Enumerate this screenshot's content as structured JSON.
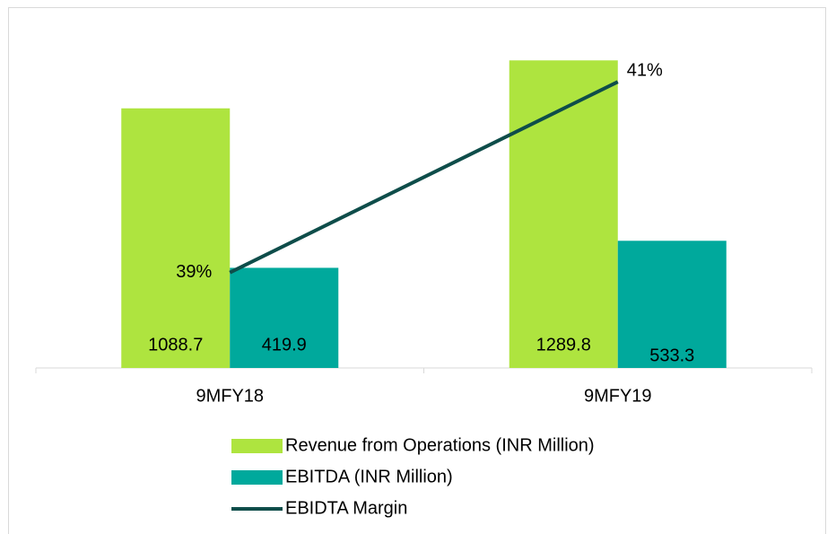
{
  "chart_data": {
    "type": "bar",
    "categories": [
      "9MFY18",
      "9MFY19"
    ],
    "series": [
      {
        "name": "Revenue from Operations (INR Million)",
        "color": "#aee43f",
        "values": [
          1088.7,
          1289.8
        ]
      },
      {
        "name": "EBITDA (INR Million)",
        "color": "#00a99c",
        "values": [
          419.9,
          533.3
        ]
      },
      {
        "name": "EBIDTA Margin",
        "color": "#0e4d4a",
        "type": "line",
        "axis": "y2",
        "values": [
          39,
          41
        ],
        "value_labels": [
          "39%",
          "41%"
        ]
      }
    ],
    "ylim": [
      0,
      1400
    ],
    "y2lim": [
      38,
      41.5
    ],
    "legend": "bottom"
  }
}
